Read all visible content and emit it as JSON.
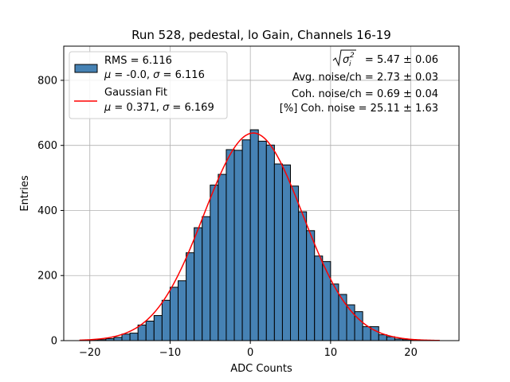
{
  "chart_data": {
    "type": "bar",
    "title": "Run 528, pedestal, lo Gain, Channels 16-19",
    "xlabel": "ADC Counts",
    "ylabel": "Entries",
    "xlim": [
      -23.25,
      26.0
    ],
    "ylim": [
      0,
      905
    ],
    "xticks": [
      -20,
      -10,
      0,
      10,
      20
    ],
    "xtick_labels": [
      "−20",
      "−10",
      "0",
      "10",
      "20"
    ],
    "yticks": [
      0,
      200,
      400,
      600,
      800
    ],
    "ytick_labels": [
      "0",
      "200",
      "400",
      "600",
      "800"
    ],
    "grid": true,
    "histogram": {
      "name": "RMS = 6.116, μ = -0.0, σ = 6.116",
      "bin_width": 1,
      "color": "#4682b4",
      "edgecolor": "#000000",
      "bins": [
        {
          "x": -20.5,
          "y": 1
        },
        {
          "x": -19.5,
          "y": 1
        },
        {
          "x": -18.5,
          "y": 3
        },
        {
          "x": -17.5,
          "y": 6
        },
        {
          "x": -16.5,
          "y": 10
        },
        {
          "x": -15.5,
          "y": 20
        },
        {
          "x": -14.5,
          "y": 23
        },
        {
          "x": -13.5,
          "y": 48
        },
        {
          "x": -12.5,
          "y": 60
        },
        {
          "x": -11.5,
          "y": 77
        },
        {
          "x": -10.5,
          "y": 124
        },
        {
          "x": -9.5,
          "y": 164
        },
        {
          "x": -8.5,
          "y": 184
        },
        {
          "x": -7.5,
          "y": 270
        },
        {
          "x": -6.5,
          "y": 347
        },
        {
          "x": -5.5,
          "y": 381
        },
        {
          "x": -4.5,
          "y": 478
        },
        {
          "x": -3.5,
          "y": 511
        },
        {
          "x": -2.5,
          "y": 587
        },
        {
          "x": -1.5,
          "y": 585
        },
        {
          "x": -0.5,
          "y": 617
        },
        {
          "x": 0.5,
          "y": 648
        },
        {
          "x": 1.5,
          "y": 613
        },
        {
          "x": 2.5,
          "y": 601
        },
        {
          "x": 3.5,
          "y": 543
        },
        {
          "x": 4.5,
          "y": 540
        },
        {
          "x": 5.5,
          "y": 475
        },
        {
          "x": 6.5,
          "y": 396
        },
        {
          "x": 7.5,
          "y": 338
        },
        {
          "x": 8.5,
          "y": 260
        },
        {
          "x": 9.5,
          "y": 243
        },
        {
          "x": 10.5,
          "y": 174
        },
        {
          "x": 11.5,
          "y": 142
        },
        {
          "x": 12.5,
          "y": 110
        },
        {
          "x": 13.5,
          "y": 89
        },
        {
          "x": 14.5,
          "y": 43
        },
        {
          "x": 15.5,
          "y": 43
        },
        {
          "x": 16.5,
          "y": 18
        },
        {
          "x": 17.5,
          "y": 12
        },
        {
          "x": 18.5,
          "y": 5
        },
        {
          "x": 19.5,
          "y": 3
        },
        {
          "x": 20.5,
          "y": 1
        },
        {
          "x": 21.5,
          "y": 1
        }
      ]
    },
    "fit": {
      "name": "Gaussian Fit, μ = 0.371, σ = 6.169",
      "type": "line",
      "color": "#ff0000",
      "mu": 0.371,
      "sigma": 6.169,
      "amplitude": 638,
      "x_range": [
        -21.3,
        23.6
      ]
    },
    "legend": {
      "position": "top-left",
      "entries": [
        {
          "kind": "patch",
          "line1": "RMS = 6.116",
          "line2": "μ = -0.0, σ = 6.116"
        },
        {
          "kind": "line",
          "line1": "Gaussian Fit",
          "line2": "μ = 0.371, σ = 6.169"
        }
      ]
    },
    "annotations": {
      "position": "top-right",
      "sigma_total_suffix": " = 5.47 ± 0.06",
      "avg_noise": "Avg. noise/ch = 2.73 ± 0.03",
      "coh_noise": "Coh. noise/ch = 0.69 ± 0.04",
      "coh_percent": "[%] Coh. noise = 25.11 ± 1.63"
    }
  }
}
